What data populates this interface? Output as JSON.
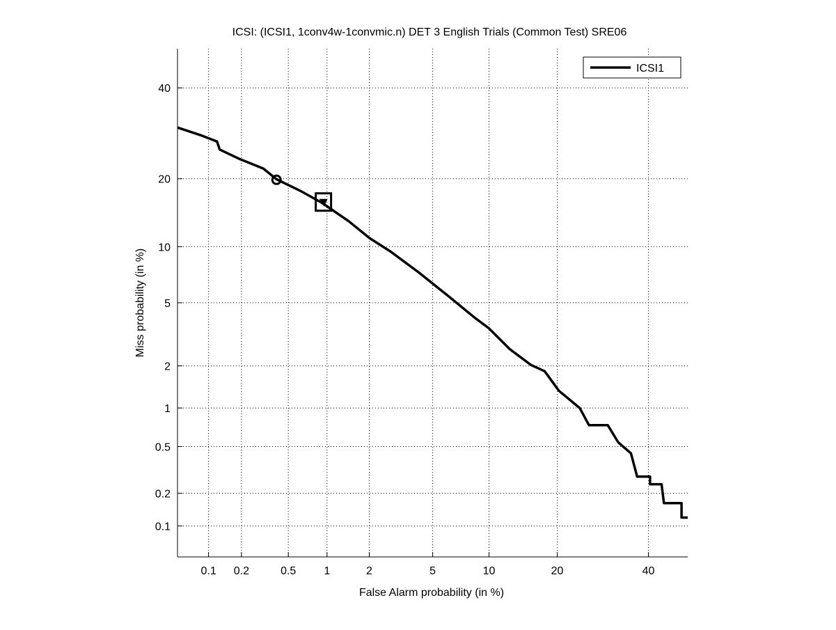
{
  "chart_data": {
    "type": "line",
    "title": "ICSI: (ICSI1, 1conv4w-1convmic.n) DET 3 English Trials (Common Test) SRE06",
    "xlabel": "False Alarm probability (in %)",
    "ylabel": "Miss probability (in %)",
    "xscale": "probit",
    "yscale": "probit",
    "xlim": [
      0.05,
      50
    ],
    "ylim": [
      0.05,
      50
    ],
    "xticks": [
      0.1,
      0.2,
      0.5,
      1,
      2,
      5,
      10,
      20,
      40
    ],
    "xtick_labels": [
      "0.1",
      "0.2",
      "0.5",
      "1",
      "2",
      "5",
      "10",
      "20",
      "40"
    ],
    "yticks": [
      0.1,
      0.2,
      0.5,
      1,
      2,
      5,
      10,
      20,
      40
    ],
    "ytick_labels": [
      "0.1",
      "0.2",
      "0.5",
      "1",
      "2",
      "5",
      "10",
      "20",
      "40"
    ],
    "grid": true,
    "legend": {
      "placement": "top-right",
      "entries": [
        "ICSI1"
      ]
    },
    "series": [
      {
        "name": "ICSI1",
        "color": "#000000",
        "x": [
          0.05,
          0.086,
          0.12,
          0.127,
          0.195,
          0.31,
          0.4,
          0.62,
          0.92,
          1.44,
          2.01,
          2.77,
          4.14,
          6.0,
          8.47,
          9.97,
          12.55,
          15.6,
          17.8,
          20.3,
          24.3,
          26.2,
          30.3,
          32.7,
          35.7,
          37.2,
          40.4,
          40.4,
          43.3,
          43.9,
          48.4,
          48.4,
          50
        ],
        "y": [
          30.5,
          28.7,
          27.4,
          25.7,
          23.7,
          21.9,
          19.9,
          17.9,
          15.9,
          13.2,
          11.0,
          9.44,
          7.37,
          5.56,
          4.08,
          3.52,
          2.59,
          2.03,
          1.84,
          1.34,
          1.0,
          0.74,
          0.74,
          0.54,
          0.44,
          0.28,
          0.28,
          0.24,
          0.24,
          0.163,
          0.163,
          0.12,
          0.12
        ]
      }
    ],
    "markers": [
      {
        "name": "actual-decision-point",
        "shape": "circle",
        "x": 0.4,
        "y": 19.8
      },
      {
        "name": "min-dcf-point",
        "shape": "square",
        "x": 0.94,
        "y": 16.1
      },
      {
        "name": "min-dcf-triangle",
        "shape": "triangle-down",
        "x": 0.94,
        "y": 16.1
      }
    ]
  }
}
